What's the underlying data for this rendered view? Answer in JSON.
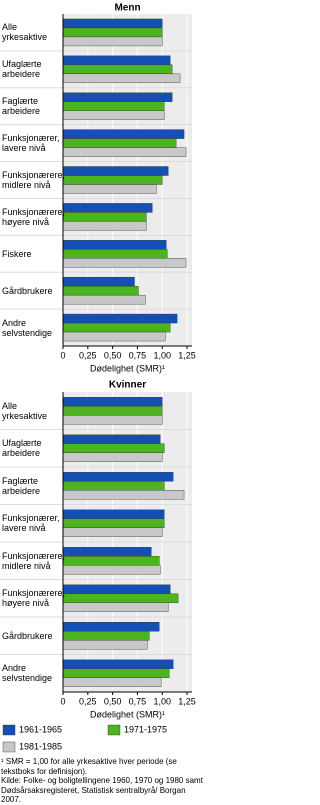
{
  "chart_data": [
    {
      "type": "hbar",
      "title": "Menn",
      "xlabel": "Dødelighet (SMR)¹",
      "categories": [
        "Alle yrkesaktive",
        "Ufaglærte arbeidere",
        "Faglærte arbeidere",
        "Funksjonærer, lavere nivå",
        "Funksjonærere, midlere nivå",
        "Funksjonærere, høyere nivå",
        "Fiskere",
        "Gårdbrukere",
        "Andre selvstendige"
      ],
      "series": [
        {
          "color": "#1450b4",
          "values": [
            1.0,
            1.08,
            1.1,
            1.22,
            1.06,
            0.9,
            1.04,
            0.72,
            1.15
          ]
        },
        {
          "color": "#4cb41e",
          "values": [
            1.0,
            1.1,
            1.02,
            1.14,
            1.0,
            0.84,
            1.05,
            0.76,
            1.08
          ]
        },
        {
          "color": "#c8c8c8",
          "values": [
            1.0,
            1.18,
            1.02,
            1.24,
            0.94,
            0.84,
            1.24,
            0.83,
            1.03
          ]
        }
      ],
      "xlim": [
        0,
        1.3
      ],
      "xticks": [
        0,
        {
          "value": 0.25,
          "label": "0,25"
        },
        {
          "value": 0.5,
          "label": "0,50"
        },
        {
          "value": 0.75,
          "label": "0,75"
        },
        {
          "value": 1,
          "label": "1,00"
        },
        {
          "value": 1.25,
          "label": "1,25"
        }
      ],
      "grid": true
    },
    {
      "type": "hbar",
      "title": "Kvinner",
      "xlabel": "Dødelighet (SMR)¹",
      "categories": [
        "Alle yrkesaktive",
        "Ufaglærte arbeidere",
        "Faglærte arbeidere",
        "Funksjonærer, lavere nivå",
        "Funksjonærere, midlere nivå",
        "Funksjonærere, høyere nivå",
        "Gårdbrukere",
        "Andre selvstendige"
      ],
      "series": [
        {
          "name": "1961-1965",
          "color": "#1450b4",
          "values": [
            1.0,
            0.98,
            1.11,
            1.02,
            0.89,
            1.08,
            0.97,
            1.11
          ]
        },
        {
          "name": "1971-1975",
          "color": "#4cb41e",
          "values": [
            1.0,
            1.02,
            1.02,
            1.02,
            0.97,
            1.16,
            0.87,
            1.07
          ]
        },
        {
          "name": "1981-1985",
          "color": "#c8c8c8",
          "values": [
            1.0,
            1.0,
            1.22,
            1.0,
            0.98,
            1.06,
            0.85,
            0.99
          ]
        }
      ],
      "xlim": [
        0,
        1.3
      ],
      "xticks": [
        0,
        {
          "value": 0.25,
          "label": "0,25"
        },
        {
          "value": 0.5,
          "label": "0,50"
        },
        {
          "value": 0.75,
          "label": "0,75"
        },
        {
          "value": 1,
          "label": "1,00"
        },
        {
          "value": 1.25,
          "label": "1,25"
        }
      ],
      "grid": true
    }
  ],
  "notes": [
    "¹ SMR = 1,00 for alle yrkesaktive hver periode (se tekstboks for definisjon).",
    "Kilde: Folke- og boligtellingene 1960, 1970 og 1980 samt Dødsårsaksregisteret, Statistisk sentralbyrå/ Borgan 2007."
  ]
}
